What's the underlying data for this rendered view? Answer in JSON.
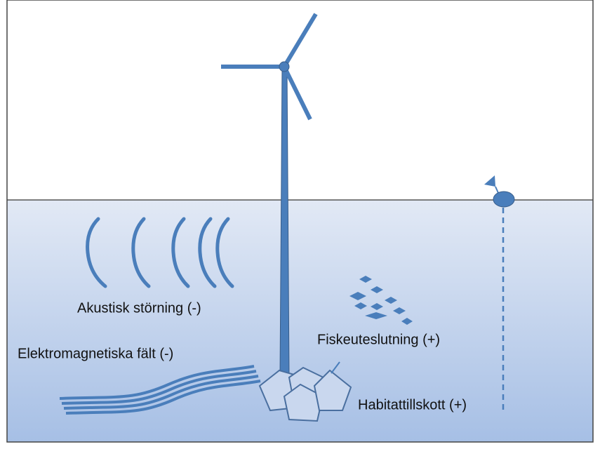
{
  "labels": {
    "acoustic": "Akustisk störning (-)",
    "electromagnetic": "Elektromagnetiska fält (-)",
    "fish": "Fiskeuteslutning (+)",
    "habitat": "Habitattillskott (+)"
  }
}
